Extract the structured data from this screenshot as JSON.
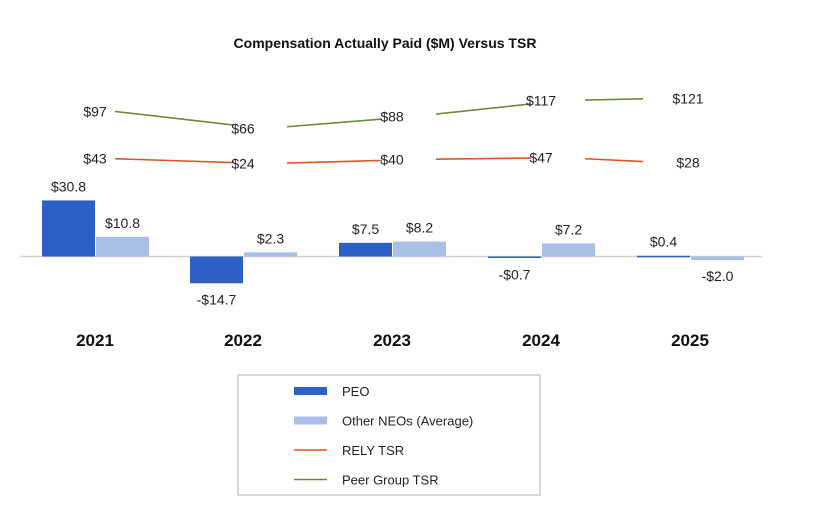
{
  "chart_data": {
    "type": "bar",
    "title": "Compensation Actually Paid ($M) Versus TSR",
    "categories": [
      "2021",
      "2022",
      "2023",
      "2024",
      "2025"
    ],
    "series": [
      {
        "name": "PEO",
        "kind": "bar",
        "color": "#2e5fc7",
        "values": [
          30.8,
          -14.7,
          7.5,
          -0.7,
          0.4
        ],
        "labels": [
          "$30.8",
          "-$14.7",
          "$7.5",
          "-$0.7",
          "$0.4"
        ]
      },
      {
        "name": "Other NEOs (Average)",
        "kind": "bar",
        "color": "#a9bfe8",
        "values": [
          10.8,
          2.3,
          8.2,
          7.2,
          -2.0
        ],
        "labels": [
          "$10.8",
          "$2.3",
          "$8.2",
          "$7.2",
          "-$2.0"
        ]
      },
      {
        "name": "RELY TSR",
        "kind": "line",
        "color": "#d9572a",
        "values": [
          43,
          24,
          40,
          47,
          28
        ],
        "labels": [
          "$43",
          "$24",
          "$40",
          "$47",
          "$28"
        ]
      },
      {
        "name": "Peer Group TSR",
        "kind": "line",
        "color": "#6b8a3a",
        "values": [
          97,
          66,
          88,
          117,
          121
        ],
        "labels": [
          "$97",
          "$66",
          "$88",
          "$117",
          "$121"
        ]
      }
    ],
    "legend": "bottom-center",
    "grid": false
  }
}
